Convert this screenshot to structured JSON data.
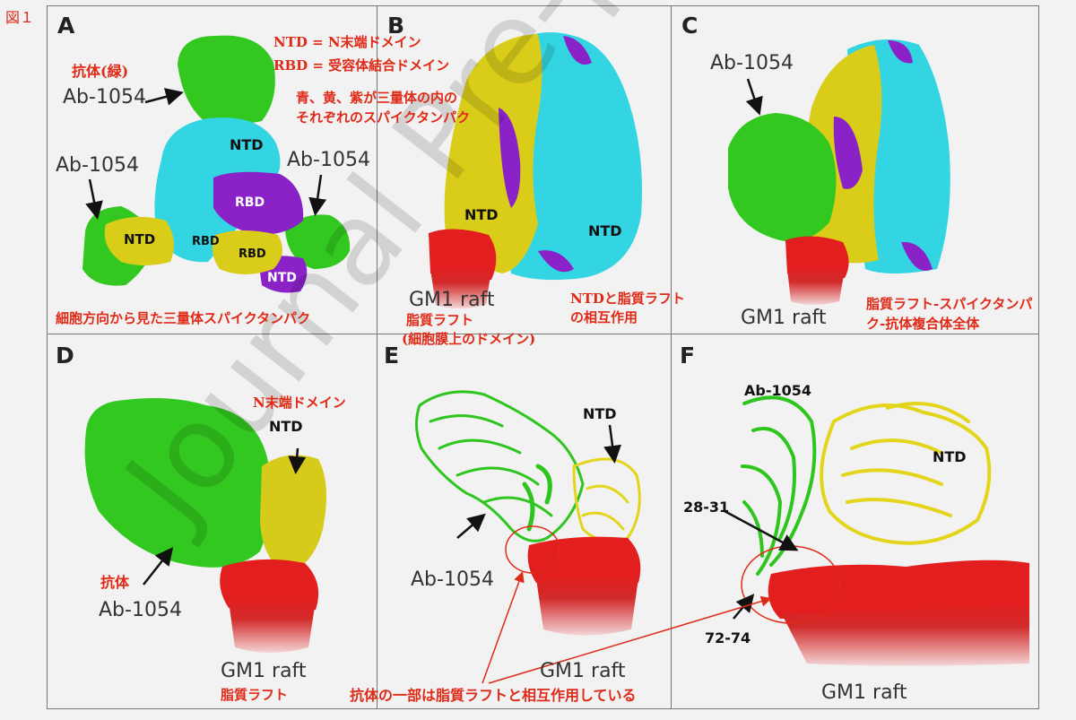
{
  "figure_label": "図１",
  "watermark": "Journal Pre-proof",
  "panels": {
    "A": {
      "letter": "A",
      "ab_top": "Ab-1054",
      "ab_left": "Ab-1054",
      "ab_right": "Ab-1054",
      "ntd_top": "NTD",
      "ntd_left": "NTD",
      "ntd_bottom": "NTD",
      "rbd_purple": "RBD",
      "rbd_cyan": "RBD",
      "rbd_yellow": "RBD",
      "ann_antibody": "抗体(緑)",
      "ann_ntd_def": "NTD = N末端ドメイン",
      "ann_rbd_def": "RBD = 受容体結合ドメイン",
      "ann_view": "細胞方向から見た三量体スパイクタンパク"
    },
    "B": {
      "letter": "B",
      "ntd_left": "NTD",
      "ntd_right": "NTD",
      "gm1": "GM1 raft",
      "ann_colors_1": "青、黄、紫が三量体の内の",
      "ann_colors_2": "それぞれのスパイクタンパク",
      "ann_raft_1": "脂質ラフト",
      "ann_raft_2": "(細胞膜上のドメイン)",
      "ann_ntd_raft_1": "NTDと脂質ラフト",
      "ann_ntd_raft_2": "の相互作用"
    },
    "C": {
      "letter": "C",
      "ab": "Ab-1054",
      "gm1": "GM1 raft",
      "ann_complex_1": "脂質ラフト-スパイクタンパ",
      "ann_complex_2": "ク-抗体複合体全体"
    },
    "D": {
      "letter": "D",
      "ntd": "NTD",
      "ab": "Ab-1054",
      "gm1": "GM1 raft",
      "ann_ntd": "N末端ドメイン",
      "ann_antibody": "抗体",
      "ann_raft": "脂質ラフト"
    },
    "E": {
      "letter": "E",
      "ntd": "NTD",
      "ab": "Ab-1054",
      "gm1": "GM1 raft"
    },
    "F": {
      "letter": "F",
      "ab": "Ab-1054",
      "ntd": "NTD",
      "res1": "28-31",
      "res2": "72-74",
      "gm1": "GM1 raft"
    }
  },
  "bottom_annotation": "抗体の一部は脂質ラフトと相互作用している",
  "colors": {
    "annotation": "#e02a18",
    "antibody": "#2ec61e",
    "cyan": "#2fd3e0",
    "yellow": "#d8cc18",
    "purple": "#8a1fc6",
    "raft": "#e02020",
    "frame": "#777777"
  }
}
